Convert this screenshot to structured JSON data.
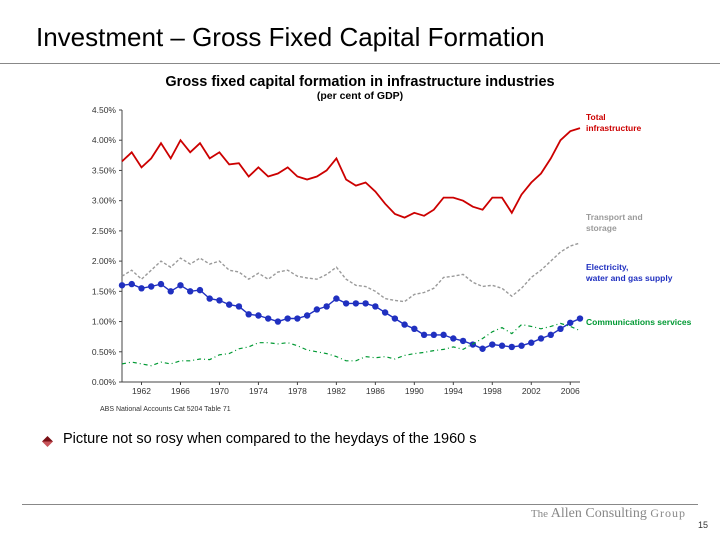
{
  "slide": {
    "title": "Investment – Gross Fixed Capital Formation",
    "page_number": "15"
  },
  "chart": {
    "type": "line",
    "title": "Gross fixed capital formation in infrastructure industries",
    "subtitle": "(per cent of GDP)",
    "source": "ABS National Accounts   Cat 5204  Table 71",
    "background_color": "#ffffff",
    "axis_color": "#444444",
    "tick_color": "#444444",
    "tick_fontsize": 8.5,
    "x": {
      "ticks": [
        1962,
        1966,
        1970,
        1974,
        1978,
        1982,
        1986,
        1990,
        1994,
        1998,
        2002,
        2006
      ],
      "min": 1960,
      "max": 2007
    },
    "y": {
      "min": 0.0,
      "max": 4.5,
      "step": 0.5,
      "format_suffix": "%",
      "labels": [
        "0.00%",
        "0.50%",
        "1.00%",
        "1.50%",
        "2.00%",
        "2.50%",
        "3.00%",
        "3.50%",
        "4.00%",
        "4.50%"
      ]
    },
    "legend_fontsize": 8.5,
    "series": [
      {
        "id": "total",
        "label": "Total infrastructure",
        "color": "#cc0000",
        "line_width": 1.8,
        "dash": null,
        "marker": null,
        "x": [
          1960,
          1961,
          1962,
          1963,
          1964,
          1965,
          1966,
          1967,
          1968,
          1969,
          1970,
          1971,
          1972,
          1973,
          1974,
          1975,
          1976,
          1977,
          1978,
          1979,
          1980,
          1981,
          1982,
          1983,
          1984,
          1985,
          1986,
          1987,
          1988,
          1989,
          1990,
          1991,
          1992,
          1993,
          1994,
          1995,
          1996,
          1997,
          1998,
          1999,
          2000,
          2001,
          2002,
          2003,
          2004,
          2005,
          2006,
          2007
        ],
        "y": [
          3.65,
          3.8,
          3.55,
          3.7,
          3.95,
          3.7,
          4.0,
          3.8,
          3.95,
          3.7,
          3.8,
          3.6,
          3.62,
          3.4,
          3.55,
          3.4,
          3.45,
          3.55,
          3.4,
          3.35,
          3.4,
          3.5,
          3.7,
          3.35,
          3.25,
          3.3,
          3.15,
          2.95,
          2.78,
          2.72,
          2.8,
          2.75,
          2.85,
          3.05,
          3.05,
          3.0,
          2.9,
          2.85,
          3.05,
          3.05,
          2.8,
          3.1,
          3.3,
          3.45,
          3.7,
          4.0,
          4.15,
          4.2
        ]
      },
      {
        "id": "transport",
        "label": "Transport and storage",
        "color": "#9a9a9a",
        "line_width": 1.4,
        "dash": "3,2",
        "marker": null,
        "x": [
          1960,
          1961,
          1962,
          1963,
          1964,
          1965,
          1966,
          1967,
          1968,
          1969,
          1970,
          1971,
          1972,
          1973,
          1974,
          1975,
          1976,
          1977,
          1978,
          1979,
          1980,
          1981,
          1982,
          1983,
          1984,
          1985,
          1986,
          1987,
          1988,
          1989,
          1990,
          1991,
          1992,
          1993,
          1994,
          1995,
          1996,
          1997,
          1998,
          1999,
          2000,
          2001,
          2002,
          2003,
          2004,
          2005,
          2006,
          2007
        ],
        "y": [
          1.75,
          1.85,
          1.7,
          1.85,
          2.0,
          1.9,
          2.05,
          1.95,
          2.05,
          1.95,
          2.0,
          1.85,
          1.82,
          1.7,
          1.8,
          1.7,
          1.82,
          1.85,
          1.75,
          1.72,
          1.7,
          1.78,
          1.9,
          1.7,
          1.6,
          1.58,
          1.5,
          1.38,
          1.35,
          1.33,
          1.45,
          1.48,
          1.55,
          1.73,
          1.75,
          1.78,
          1.65,
          1.58,
          1.6,
          1.55,
          1.42,
          1.55,
          1.73,
          1.85,
          2.0,
          2.15,
          2.25,
          2.3
        ]
      },
      {
        "id": "utilities",
        "label": "Electricity, water and gas supply",
        "color": "#2030c0",
        "line_width": 1.4,
        "dash": null,
        "marker": "circle",
        "marker_size": 3.2,
        "x": [
          1960,
          1961,
          1962,
          1963,
          1964,
          1965,
          1966,
          1967,
          1968,
          1969,
          1970,
          1971,
          1972,
          1973,
          1974,
          1975,
          1976,
          1977,
          1978,
          1979,
          1980,
          1981,
          1982,
          1983,
          1984,
          1985,
          1986,
          1987,
          1988,
          1989,
          1990,
          1991,
          1992,
          1993,
          1994,
          1995,
          1996,
          1997,
          1998,
          1999,
          2000,
          2001,
          2002,
          2003,
          2004,
          2005,
          2006,
          2007
        ],
        "y": [
          1.6,
          1.62,
          1.55,
          1.58,
          1.62,
          1.5,
          1.6,
          1.5,
          1.52,
          1.38,
          1.35,
          1.28,
          1.25,
          1.12,
          1.1,
          1.05,
          1.0,
          1.05,
          1.05,
          1.1,
          1.2,
          1.25,
          1.38,
          1.3,
          1.3,
          1.3,
          1.25,
          1.15,
          1.05,
          0.95,
          0.88,
          0.78,
          0.78,
          0.78,
          0.72,
          0.68,
          0.62,
          0.55,
          0.62,
          0.6,
          0.58,
          0.6,
          0.65,
          0.72,
          0.78,
          0.88,
          0.98,
          1.05
        ]
      },
      {
        "id": "comms",
        "label": "Communications services",
        "color": "#009933",
        "line_width": 1.2,
        "dash": "4,3,1,3",
        "marker": null,
        "x": [
          1960,
          1961,
          1962,
          1963,
          1964,
          1965,
          1966,
          1967,
          1968,
          1969,
          1970,
          1971,
          1972,
          1973,
          1974,
          1975,
          1976,
          1977,
          1978,
          1979,
          1980,
          1981,
          1982,
          1983,
          1984,
          1985,
          1986,
          1987,
          1988,
          1989,
          1990,
          1991,
          1992,
          1993,
          1994,
          1995,
          1996,
          1997,
          1998,
          1999,
          2000,
          2001,
          2002,
          2003,
          2004,
          2005,
          2006,
          2007
        ],
        "y": [
          0.3,
          0.33,
          0.3,
          0.27,
          0.33,
          0.3,
          0.35,
          0.35,
          0.38,
          0.37,
          0.45,
          0.47,
          0.55,
          0.58,
          0.65,
          0.65,
          0.63,
          0.65,
          0.6,
          0.53,
          0.5,
          0.47,
          0.42,
          0.35,
          0.35,
          0.42,
          0.4,
          0.42,
          0.38,
          0.44,
          0.47,
          0.49,
          0.52,
          0.54,
          0.58,
          0.54,
          0.63,
          0.72,
          0.83,
          0.9,
          0.8,
          0.95,
          0.92,
          0.88,
          0.92,
          0.97,
          0.92,
          0.85
        ]
      }
    ]
  },
  "bullet": {
    "text": "Picture not so rosy when compared to the heydays of the 1960 s",
    "icon_colors": {
      "top": "#7a1015",
      "bottom": "#c8545a"
    }
  },
  "logo": {
    "the": "The",
    "allen": "Allen Consulting",
    "group": "Group",
    "color": "#8a8a8a"
  }
}
